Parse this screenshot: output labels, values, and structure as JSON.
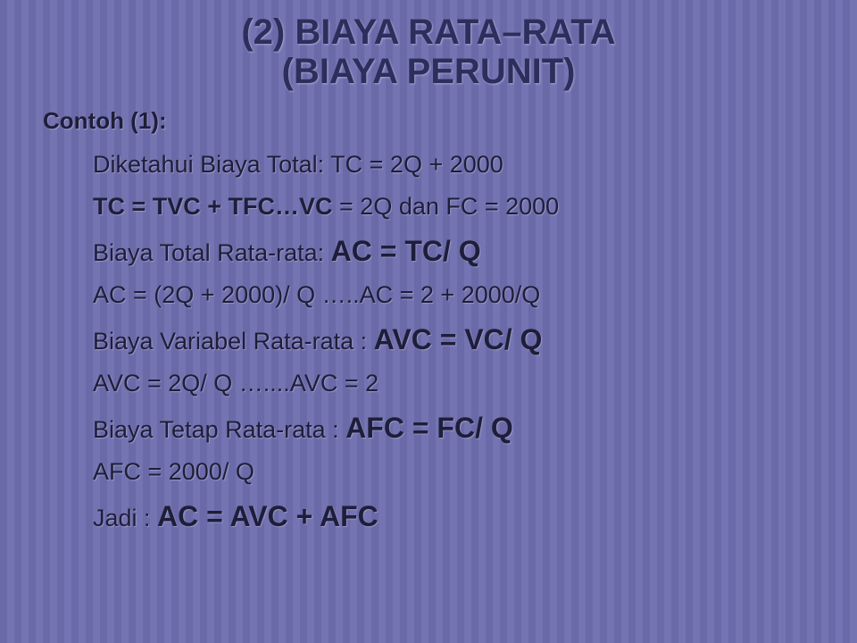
{
  "title": {
    "line1_prefix": "(",
    "line1_num": "2",
    "line1_rest": ") BIAYA RATA–RATA",
    "line2": "(BIAYA PERUNIT)"
  },
  "subhead": "Contoh (1):",
  "lines": {
    "l1": "Diketahui Biaya Total: TC = 2Q + 2000",
    "l2a": "TC = TVC + TFC…VC",
    "l2b": " = 2Q  dan   FC = 2000",
    "l3a": "Biaya Total  Rata-rata:   ",
    "l3b": "AC = TC/ Q",
    "l4": "AC = (2Q + 2000)/ Q …..AC = 2 + 2000/Q",
    "l5a": "Biaya Variabel Rata-rata : ",
    "l5b": "AVC = VC/ Q",
    "l6": "AVC = 2Q/ Q …....AVC = 2",
    "l7a": "Biaya Tetap Rata-rata  :  ",
    "l7b": "AFC = FC/ Q",
    "l8": "AFC  = 2000/ Q",
    "l9a": "Jadi :  ",
    "l9b": "AC = AVC + AFC"
  }
}
